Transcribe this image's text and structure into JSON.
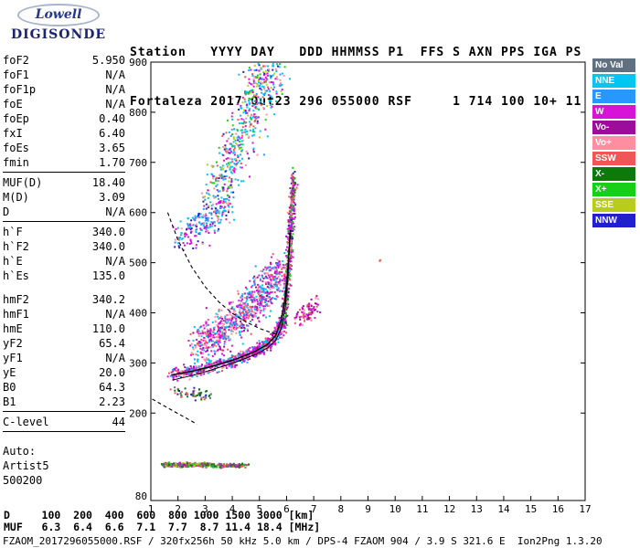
{
  "logo": {
    "brand": "Lowell",
    "product": "DIGISONDE"
  },
  "header": {
    "line1": "Station   YYYY DAY   DDD HHMMSS P1  FFS S AXN PPS IGA PS",
    "line2": "Fortaleza 2017 Out23 296 055000 RSF     1 714 100 10+ 11"
  },
  "params": {
    "groups": [
      {
        "rows": [
          [
            "foF2",
            "5.950"
          ],
          [
            "foF1",
            "N/A"
          ],
          [
            "foF1p",
            "N/A"
          ],
          [
            "foE",
            "N/A"
          ],
          [
            "foEp",
            "0.40"
          ],
          [
            "fxI",
            "6.40"
          ],
          [
            "foEs",
            "3.65"
          ],
          [
            "fmin",
            "1.70"
          ]
        ],
        "sep": true,
        "gapAfter": false
      },
      {
        "rows": [
          [
            "MUF(D)",
            "18.40"
          ],
          [
            "M(D)",
            "3.09"
          ],
          [
            "D",
            "N/A"
          ]
        ],
        "sep": true,
        "gapAfter": false
      },
      {
        "rows": [
          [
            "h`F",
            "340.0"
          ],
          [
            "h`F2",
            "340.0"
          ],
          [
            "h`E",
            "N/A"
          ],
          [
            "h`Es",
            "135.0"
          ]
        ],
        "sep": false,
        "gapAfter": true
      },
      {
        "rows": [
          [
            "hmF2",
            "340.2"
          ],
          [
            "hmF1",
            "N/A"
          ],
          [
            "hmE",
            "110.0"
          ],
          [
            "yF2",
            "65.4"
          ],
          [
            "yF1",
            "N/A"
          ],
          [
            "yE",
            "20.0"
          ],
          [
            "B0",
            "64.3"
          ],
          [
            "B1",
            "2.23"
          ]
        ],
        "sep": true,
        "gapAfter": false
      },
      {
        "rows": [
          [
            "C-level",
            "44"
          ]
        ],
        "sep": true,
        "gapAfter": true
      }
    ],
    "footer_lines": [
      "Auto:",
      "Artist5",
      "500200"
    ]
  },
  "legend": {
    "items": [
      {
        "key": "NoVal",
        "label": "No Val",
        "color": "#607080"
      },
      {
        "key": "NNE",
        "label": "NNE",
        "color": "#00c6f0"
      },
      {
        "key": "E",
        "label": "E",
        "color": "#2897ff"
      },
      {
        "key": "W",
        "label": "W",
        "color": "#d813d8"
      },
      {
        "key": "Vo-",
        "label": "Vo-",
        "color": "#9c0d9c"
      },
      {
        "key": "Vo+",
        "label": "Vo+",
        "color": "#ff8fa0"
      },
      {
        "key": "SSW",
        "label": "SSW",
        "color": "#f25555"
      },
      {
        "key": "X-",
        "label": "X-",
        "color": "#0b7a0b"
      },
      {
        "key": "X+",
        "label": "X+",
        "color": "#17cf17"
      },
      {
        "key": "SSE",
        "label": "SSE",
        "color": "#b8cc1c"
      },
      {
        "key": "NNW",
        "label": "NNW",
        "color": "#2020cc"
      }
    ]
  },
  "chart_data": {
    "type": "scatter",
    "title": "",
    "xlabel": "[MHz]",
    "ylabel": "[km]",
    "xlim": [
      1,
      17
    ],
    "ylim_km": [
      80,
      900
    ],
    "x_ticks": [
      1,
      2,
      3,
      4,
      5,
      6,
      7,
      8,
      9,
      10,
      11,
      12,
      13,
      14,
      15,
      16,
      17
    ],
    "y_ticks": [
      900,
      800,
      700,
      600,
      500,
      400,
      300,
      200,
      80
    ],
    "clusters": [
      {
        "name": "es-layer-dense",
        "seed": 11,
        "n": 340,
        "sf": 0.08,
        "sh": 4.5,
        "colors": [
          "SSW",
          "X-",
          "X+",
          "NoVal",
          "W",
          "SSE",
          "SSW",
          "X-",
          "Vo-"
        ],
        "path": [
          [
            1.42,
            96
          ],
          [
            3.15,
            97
          ]
        ]
      },
      {
        "name": "es-layer-sparse",
        "seed": 12,
        "n": 120,
        "sf": 0.1,
        "sh": 4,
        "colors": [
          "SSW",
          "X-",
          "NoVal",
          "X+",
          "W"
        ],
        "path": [
          [
            3.25,
            95
          ],
          [
            4.55,
            96
          ]
        ]
      },
      {
        "name": "f-trace-core",
        "seed": 21,
        "n": 700,
        "sf": 0.18,
        "sh": 13,
        "colors": [
          "W",
          "W",
          "W",
          "Vo-",
          "Vo+",
          "SSW",
          "NNE",
          "E"
        ],
        "path": [
          [
            1.75,
            278
          ],
          [
            2.5,
            284
          ],
          [
            3.3,
            294
          ],
          [
            4.1,
            307
          ],
          [
            4.8,
            321
          ],
          [
            5.3,
            336
          ],
          [
            5.65,
            356
          ],
          [
            5.85,
            385
          ]
        ]
      },
      {
        "name": "f-asymptote-column",
        "seed": 22,
        "n": 450,
        "sf": 0.12,
        "sh": 32,
        "colors": [
          "W",
          "Vo-",
          "X-",
          "X+",
          "SSW",
          "NNW",
          "Vo+",
          "W",
          "NoVal"
        ],
        "path": [
          [
            5.9,
            380
          ],
          [
            6.0,
            440
          ],
          [
            6.08,
            500
          ],
          [
            6.15,
            560
          ],
          [
            6.2,
            615
          ],
          [
            6.28,
            668
          ]
        ]
      },
      {
        "name": "spread-f-cloud",
        "seed": 23,
        "n": 850,
        "sf": 0.5,
        "sh": 42,
        "colors": [
          "W",
          "W",
          "Vo+",
          "Vo-",
          "SSW",
          "NNE",
          "E",
          "NNE",
          "W",
          "Vo+"
        ],
        "path": [
          [
            2.7,
            330
          ],
          [
            3.4,
            356
          ],
          [
            4.1,
            386
          ],
          [
            4.8,
            418
          ],
          [
            5.35,
            452
          ],
          [
            5.75,
            492
          ]
        ]
      },
      {
        "name": "multiple-echo-band",
        "seed": 24,
        "n": 220,
        "sf": 0.38,
        "sh": 32,
        "colors": [
          "NNE",
          "E",
          "NNW",
          "W",
          "Vo+",
          "NNE",
          "W"
        ],
        "path": [
          [
            2.05,
            550
          ],
          [
            2.7,
            572
          ],
          [
            3.3,
            594
          ],
          [
            3.9,
            616
          ]
        ]
      },
      {
        "name": "upper-plume",
        "seed": 25,
        "n": 540,
        "sf": 0.72,
        "sh": 46,
        "colors": [
          "NNE",
          "E",
          "W",
          "Vo+",
          "NNW",
          "X+",
          "SSE",
          "SSW",
          "NNE",
          "W",
          "NNE"
        ],
        "path": [
          [
            3.3,
            620
          ],
          [
            3.9,
            698
          ],
          [
            4.5,
            775
          ],
          [
            5.0,
            845
          ],
          [
            5.45,
            888
          ]
        ]
      },
      {
        "name": "right-shoulder",
        "seed": 26,
        "n": 90,
        "sf": 0.28,
        "sh": 20,
        "colors": [
          "W",
          "Vo+",
          "SSW",
          "Vo-"
        ],
        "path": [
          [
            6.45,
            385
          ],
          [
            6.8,
            400
          ],
          [
            7.05,
            415
          ]
        ]
      },
      {
        "name": "below-trace-sparse",
        "seed": 27,
        "n": 55,
        "sf": 0.5,
        "sh": 12,
        "colors": [
          "X-",
          "NoVal",
          "SSW",
          "NNW"
        ],
        "path": [
          [
            2.0,
            246
          ],
          [
            3.2,
            232
          ]
        ]
      },
      {
        "name": "isolated-echo",
        "seed": 28,
        "n": 2,
        "sf": 0.04,
        "sh": 3,
        "colors": [
          "SSW"
        ],
        "path": [
          [
            9.4,
            503
          ],
          [
            9.45,
            505
          ]
        ]
      }
    ],
    "traces": [
      {
        "name": "transmission-curve",
        "style": "dashed",
        "points": [
          [
            1.62,
            600
          ],
          [
            2.0,
            545
          ],
          [
            2.5,
            492
          ],
          [
            3.0,
            452
          ],
          [
            3.5,
            422
          ],
          [
            4.0,
            399
          ],
          [
            4.5,
            382
          ],
          [
            5.0,
            369
          ],
          [
            5.4,
            361
          ],
          [
            5.7,
            356
          ]
        ]
      },
      {
        "name": "low-dashed-segment",
        "style": "dashed",
        "points": [
          [
            1.05,
            228
          ],
          [
            1.7,
            208
          ],
          [
            2.3,
            190
          ],
          [
            2.7,
            178
          ]
        ]
      },
      {
        "name": "model-profile-line",
        "style": "thin",
        "points": [
          [
            1.8,
            266
          ],
          [
            2.6,
            276
          ],
          [
            3.4,
            289
          ],
          [
            4.2,
            303
          ],
          [
            4.9,
            318
          ],
          [
            5.3,
            330
          ],
          [
            5.6,
            345
          ],
          [
            5.8,
            368
          ],
          [
            5.95,
            410
          ],
          [
            6.05,
            470
          ],
          [
            6.1,
            530
          ],
          [
            6.12,
            560
          ]
        ]
      },
      {
        "name": "scaled-trace",
        "style": "solid",
        "points": [
          [
            1.75,
            276
          ],
          [
            2.5,
            283
          ],
          [
            3.3,
            294
          ],
          [
            4.1,
            307
          ],
          [
            4.8,
            322
          ],
          [
            5.3,
            337
          ],
          [
            5.6,
            355
          ],
          [
            5.8,
            385
          ],
          [
            5.95,
            430
          ],
          [
            6.05,
            490
          ],
          [
            6.12,
            545
          ],
          [
            6.15,
            565
          ]
        ]
      }
    ]
  },
  "distance_table": {
    "rows": [
      {
        "label": "D",
        "values": [
          "100",
          "200",
          "400",
          "600",
          "800",
          "1000",
          "1500",
          "3000"
        ],
        "unit": "[km]"
      },
      {
        "label": "MUF",
        "values": [
          "6.3",
          "6.4",
          "6.6",
          "7.1",
          "7.7",
          "8.7",
          "11.4",
          "18.4"
        ],
        "unit": "[MHz]"
      }
    ]
  },
  "footer": "FZAOM_2017296055000.RSF / 320fx256h 50 kHz 5.0 km / DPS-4 FZAOM 904 / 3.9 S 321.6 E  Ion2Png 1.3.20"
}
